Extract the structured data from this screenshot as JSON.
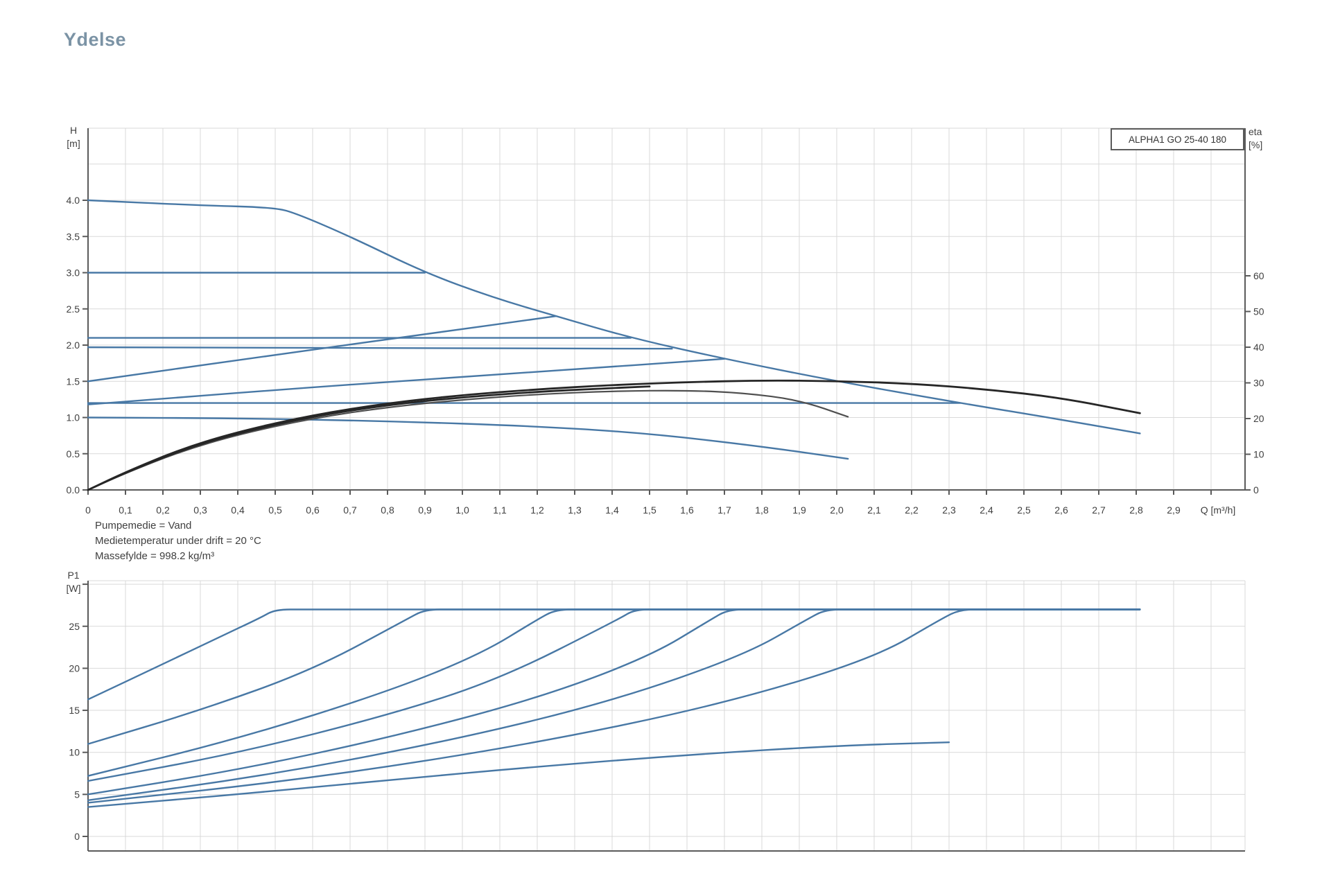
{
  "title": "Ydelse",
  "colors": {
    "title_color": "#7b93a5",
    "curve_blue": "#4878a5",
    "curve_black": "#262626",
    "curve_gray": "#4f4f4f",
    "axis": "#5a5a5a",
    "grid": "#d9d9d9",
    "text": "#3f3f3f",
    "background": "#ffffff"
  },
  "notes": [
    "Pumpemedie = Vand",
    "Medietemperatur under drift = 20 °C",
    "Massefylde = 998.2 kg/m³"
  ],
  "chart_data": [
    {
      "type": "line",
      "legend": "ALPHA1 GO 25-40 180",
      "xlabel": "Q [m³/h]",
      "ylabel_left": "H [m]",
      "ylabel_right": "eta [%]",
      "ylabel_left_lines": [
        "H",
        "[m]"
      ],
      "ylabel_right_lines": [
        "eta",
        "[%]"
      ],
      "xlim": [
        0,
        3.09
      ],
      "ylim_left": [
        0,
        5.0
      ],
      "ylim_right": [
        0,
        100
      ],
      "grid": true,
      "x_tick_values": [
        0,
        0.1,
        0.2,
        0.3,
        0.4,
        0.5,
        0.6,
        0.7,
        0.8,
        0.9,
        1.0,
        1.1,
        1.2,
        1.3,
        1.4,
        1.5,
        1.6,
        1.7,
        1.8,
        1.9,
        2.0,
        2.1,
        2.2,
        2.3,
        2.4,
        2.5,
        2.6,
        2.7,
        2.8,
        2.9
      ],
      "x_tick_labels": [
        "0",
        "0,1",
        "0,2",
        "0,3",
        "0,4",
        "0,5",
        "0,6",
        "0,7",
        "0,8",
        "0,9",
        "1,0",
        "1,1",
        "1,2",
        "1,3",
        "1,4",
        "1,5",
        "1,6",
        "1,7",
        "1,8",
        "1,9",
        "2,0",
        "2,1",
        "2,2",
        "2,3",
        "2,4",
        "2,5",
        "2,6",
        "2,7",
        "2,8",
        "2,9"
      ],
      "y_left_tick_values": [
        0,
        0.5,
        1.0,
        1.5,
        2.0,
        2.5,
        3.0,
        3.5,
        4.0
      ],
      "y_left_tick_labels": [
        "0.0",
        "0.5",
        "1.0",
        "1.5",
        "2.0",
        "2.5",
        "3.0",
        "3.5",
        "4.0"
      ],
      "y_right_tick_values": [
        0,
        10,
        20,
        30,
        40,
        50,
        60
      ],
      "y_right_tick_labels": [
        "0",
        "10",
        "20",
        "30",
        "40",
        "50",
        "60"
      ],
      "series": [
        {
          "id": "max-speed",
          "color": "blue",
          "axis": "left",
          "points": [
            [
              0,
              4.0
            ],
            [
              0.3,
              3.93
            ],
            [
              0.5,
              3.9
            ],
            [
              0.56,
              3.81
            ],
            [
              0.7,
              3.5
            ],
            [
              0.9,
              3.0
            ],
            [
              1.08,
              2.66
            ],
            [
              1.25,
              2.4
            ],
            [
              1.45,
              2.1
            ],
            [
              1.7,
              1.81
            ],
            [
              2.0,
              1.5
            ],
            [
              2.33,
              1.2
            ],
            [
              2.6,
              0.97
            ],
            [
              2.81,
              0.78
            ]
          ]
        },
        {
          "id": "const-head-3.0",
          "color": "blue",
          "axis": "left",
          "points": [
            [
              0,
              3.0
            ],
            [
              0.9,
              3.0
            ]
          ]
        },
        {
          "id": "const-head-2.1",
          "color": "blue",
          "axis": "left",
          "points": [
            [
              0,
              2.1
            ],
            [
              1.45,
              2.1
            ]
          ]
        },
        {
          "id": "const-head-2.0",
          "color": "blue",
          "axis": "left",
          "points": [
            [
              0,
              1.97
            ],
            [
              1.56,
              1.95
            ]
          ]
        },
        {
          "id": "prop-head-high",
          "color": "blue",
          "axis": "left",
          "points": [
            [
              0,
              1.5
            ],
            [
              0.45,
              1.83
            ],
            [
              0.9,
              2.15
            ],
            [
              1.25,
              2.4
            ]
          ]
        },
        {
          "id": "prop-head-low",
          "color": "blue",
          "axis": "left",
          "points": [
            [
              0,
              1.18
            ],
            [
              0.6,
              1.42
            ],
            [
              1.2,
              1.63
            ],
            [
              1.7,
              1.81
            ]
          ]
        },
        {
          "id": "const-head-1.2",
          "color": "blue",
          "axis": "left",
          "points": [
            [
              0,
              1.2
            ],
            [
              2.33,
              1.2
            ]
          ]
        },
        {
          "id": "min-speed",
          "color": "blue",
          "axis": "left",
          "points": [
            [
              0,
              1.0
            ],
            [
              0.4,
              0.99
            ],
            [
              0.8,
              0.95
            ],
            [
              1.2,
              0.88
            ],
            [
              1.5,
              0.78
            ],
            [
              1.8,
              0.6
            ],
            [
              2.03,
              0.43
            ]
          ]
        },
        {
          "id": "eta-curve-long",
          "color": "black",
          "axis": "right",
          "points": [
            [
              0,
              0
            ],
            [
              0.1,
              5
            ],
            [
              0.25,
              11.5
            ],
            [
              0.4,
              16.3
            ],
            [
              0.6,
              21
            ],
            [
              0.8,
              24.3
            ],
            [
              1.0,
              26.6
            ],
            [
              1.2,
              28.2
            ],
            [
              1.4,
              29.4
            ],
            [
              1.6,
              30.2
            ],
            [
              1.8,
              30.7
            ],
            [
              2.0,
              30.5
            ],
            [
              2.2,
              29.8
            ],
            [
              2.4,
              28.2
            ],
            [
              2.6,
              25.8
            ],
            [
              2.81,
              21.5
            ]
          ]
        },
        {
          "id": "eta-curve-short",
          "color": "gray",
          "axis": "right",
          "points": [
            [
              0,
              0
            ],
            [
              0.1,
              4.7
            ],
            [
              0.25,
              10.9
            ],
            [
              0.4,
              15.5
            ],
            [
              0.6,
              20.1
            ],
            [
              0.8,
              23.2
            ],
            [
              1.0,
              25.3
            ],
            [
              1.2,
              26.8
            ],
            [
              1.4,
              27.7
            ],
            [
              1.6,
              27.9
            ],
            [
              1.75,
              27.2
            ],
            [
              1.9,
              25.2
            ],
            [
              2.03,
              20.5
            ]
          ]
        },
        {
          "id": "eta-curve-mid",
          "color": "black",
          "axis": "right",
          "points": [
            [
              0,
              0
            ],
            [
              0.1,
              4.85
            ],
            [
              0.25,
              11.2
            ],
            [
              0.4,
              15.9
            ],
            [
              0.6,
              20.6
            ],
            [
              0.8,
              23.8
            ],
            [
              1.0,
              26.0
            ],
            [
              1.2,
              27.5
            ],
            [
              1.35,
              28.3
            ],
            [
              1.5,
              29.0
            ]
          ]
        }
      ]
    },
    {
      "type": "line",
      "ylabel": "P1 [W]",
      "ylabel_lines": [
        "P1",
        "[W]"
      ],
      "xlim": [
        0,
        3.09
      ],
      "ylim": [
        0,
        30
      ],
      "grid": true,
      "y_tick_values": [
        0,
        5,
        10,
        15,
        20,
        25,
        30
      ],
      "y_tick_labels": [
        "0",
        "5",
        "10",
        "15",
        "20",
        "25",
        ""
      ],
      "series": [
        {
          "id": "p1-max-speed",
          "color": "blue",
          "points": [
            [
              0,
              16.3
            ],
            [
              0.2,
              20.5
            ],
            [
              0.35,
              23.7
            ],
            [
              0.46,
              26.0
            ],
            [
              0.5,
              27
            ],
            [
              0.58,
              27
            ],
            [
              2.81,
              27
            ]
          ]
        },
        {
          "id": "p1-curve-2",
          "color": "blue",
          "points": [
            [
              0,
              11.0
            ],
            [
              0.3,
              15.0
            ],
            [
              0.6,
              19.8
            ],
            [
              0.85,
              25.8
            ],
            [
              0.9,
              27
            ],
            [
              0.98,
              27
            ],
            [
              2.81,
              27
            ]
          ]
        },
        {
          "id": "p1-curve-3",
          "color": "blue",
          "points": [
            [
              0,
              7.2
            ],
            [
              0.4,
              11.6
            ],
            [
              0.8,
              17.2
            ],
            [
              1.05,
              21.7
            ],
            [
              1.2,
              25.8
            ],
            [
              1.25,
              27
            ],
            [
              1.33,
              27
            ],
            [
              2.81,
              27
            ]
          ]
        },
        {
          "id": "p1-curve-4",
          "color": "blue",
          "points": [
            [
              0,
              6.6
            ],
            [
              0.4,
              9.9
            ],
            [
              0.8,
              14.4
            ],
            [
              1.1,
              18.7
            ],
            [
              1.42,
              25.9
            ],
            [
              1.46,
              27
            ],
            [
              1.54,
              27
            ],
            [
              2.81,
              27
            ]
          ]
        },
        {
          "id": "p1-curve-5",
          "color": "blue",
          "points": [
            [
              0,
              5.0
            ],
            [
              0.4,
              7.9
            ],
            [
              0.8,
              11.7
            ],
            [
              1.2,
              16.4
            ],
            [
              1.5,
              21.4
            ],
            [
              1.66,
              25.7
            ],
            [
              1.71,
              27
            ],
            [
              1.79,
              27
            ],
            [
              2.81,
              27
            ]
          ]
        },
        {
          "id": "p1-curve-6",
          "color": "blue",
          "points": [
            [
              0,
              4.3
            ],
            [
              0.5,
              7.4
            ],
            [
              1.0,
              11.7
            ],
            [
              1.4,
              16.1
            ],
            [
              1.75,
              21.5
            ],
            [
              1.92,
              25.8
            ],
            [
              1.97,
              27
            ],
            [
              2.05,
              27
            ],
            [
              2.81,
              27
            ]
          ]
        },
        {
          "id": "p1-curve-7",
          "color": "blue",
          "points": [
            [
              0,
              4.0
            ],
            [
              0.6,
              6.9
            ],
            [
              1.2,
              11.1
            ],
            [
              1.7,
              15.8
            ],
            [
              2.1,
              21.2
            ],
            [
              2.28,
              25.9
            ],
            [
              2.33,
              27
            ],
            [
              2.41,
              27
            ],
            [
              2.81,
              27
            ]
          ]
        },
        {
          "id": "p1-min-speed",
          "color": "blue",
          "points": [
            [
              0,
              3.5
            ],
            [
              0.4,
              5.0
            ],
            [
              0.8,
              6.7
            ],
            [
              1.2,
              8.3
            ],
            [
              1.6,
              9.7
            ],
            [
              2.0,
              10.8
            ],
            [
              2.3,
              11.2
            ]
          ]
        }
      ]
    }
  ]
}
